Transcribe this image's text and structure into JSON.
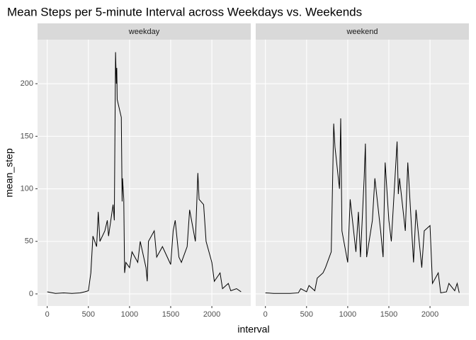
{
  "chart_data": {
    "type": "line",
    "title": "Mean Steps per 5-minute Interval across Weekdays vs. Weekends",
    "x_label": "interval",
    "y_label": "mean_step",
    "xlim": [
      -117.75,
      2472.75
    ],
    "xticks": [
      0,
      500,
      1000,
      1500,
      2000
    ],
    "ylim": [
      -11.5,
      241.9
    ],
    "yticks": [
      0,
      50,
      100,
      150,
      200
    ],
    "grid": true,
    "color": "#000000",
    "facets": [
      {
        "name": "weekday",
        "x": [
          0,
          100,
          200,
          300,
          400,
          455,
          500,
          530,
          555,
          600,
          620,
          640,
          700,
          730,
          745,
          800,
          815,
          830,
          840,
          845,
          850,
          900,
          910,
          915,
          930,
          940,
          955,
          1000,
          1030,
          1100,
          1130,
          1200,
          1215,
          1230,
          1300,
          1330,
          1400,
          1500,
          1530,
          1555,
          1600,
          1630,
          1700,
          1730,
          1800,
          1830,
          1845,
          1900,
          1930,
          2000,
          2030,
          2100,
          2130,
          2200,
          2230,
          2300,
          2355
        ],
        "values": [
          2,
          0.5,
          1,
          0.5,
          1,
          2,
          3,
          20,
          55,
          45,
          78,
          50,
          60,
          70,
          55,
          85,
          70,
          230,
          200,
          215,
          185,
          168,
          88,
          110,
          90,
          20,
          30,
          25,
          40,
          30,
          50,
          25,
          12,
          50,
          60,
          35,
          45,
          28,
          60,
          70,
          35,
          30,
          45,
          80,
          50,
          115,
          90,
          85,
          50,
          30,
          12,
          20,
          5,
          10,
          3,
          5,
          2
        ]
      },
      {
        "name": "weekend",
        "x": [
          0,
          100,
          200,
          300,
          400,
          430,
          500,
          530,
          600,
          630,
          700,
          730,
          800,
          830,
          845,
          900,
          915,
          930,
          1000,
          1030,
          1100,
          1130,
          1155,
          1200,
          1215,
          1230,
          1300,
          1330,
          1400,
          1430,
          1455,
          1500,
          1530,
          1600,
          1615,
          1630,
          1700,
          1730,
          1800,
          1830,
          1900,
          1930,
          2000,
          2030,
          2100,
          2130,
          2200,
          2230,
          2300,
          2330,
          2355
        ],
        "values": [
          1,
          0.5,
          0.5,
          0.5,
          1,
          5,
          2,
          8,
          3,
          15,
          20,
          25,
          40,
          162,
          140,
          100,
          167,
          60,
          30,
          90,
          40,
          78,
          35,
          110,
          143,
          35,
          70,
          110,
          60,
          35,
          125,
          70,
          50,
          145,
          95,
          110,
          60,
          125,
          30,
          80,
          25,
          60,
          65,
          10,
          20,
          1,
          2,
          10,
          3,
          10,
          1
        ]
      }
    ]
  }
}
